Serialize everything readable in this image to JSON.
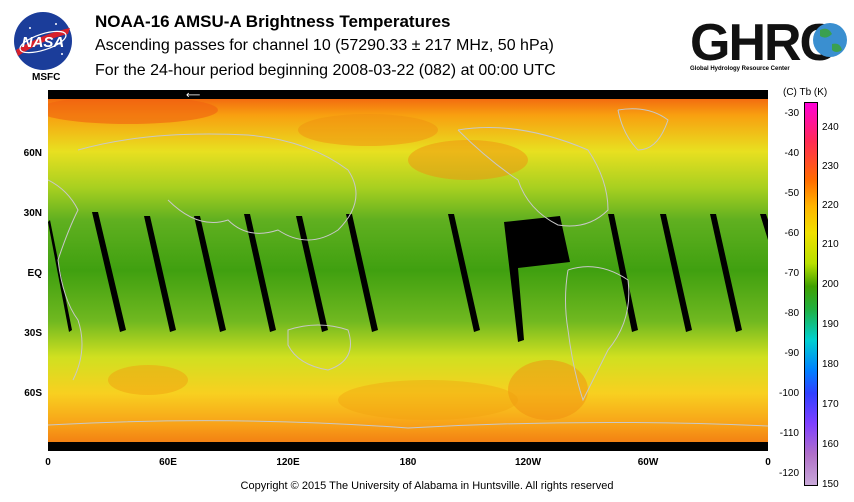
{
  "header": {
    "line1": "NOAA-16 AMSU-A Brightness Temperatures",
    "line2": "Ascending passes for channel 10 (57290.33 ± 217 MHz, 50 hPa)",
    "line3": "For the 24-hour period beginning 2008-03-22 (082) at 00:00 UTC"
  },
  "logos": {
    "nasa_text": "NASA",
    "msfc": "MSFC",
    "ghrc_text": "GHRC",
    "ghrc_sub": "Global Hydrology Resource Center"
  },
  "map": {
    "lat_labels": [
      "60N",
      "30N",
      "EQ",
      "30S",
      "60S"
    ],
    "lon_labels": [
      "0",
      "60E",
      "120E",
      "180",
      "120W",
      "60W",
      "0"
    ]
  },
  "colorbar": {
    "header": "(C)  Tb  (K)",
    "celsius": [
      "-30",
      "-40",
      "-50",
      "-60",
      "-70",
      "-80",
      "-90",
      "-100",
      "-110",
      "-120"
    ],
    "kelvin": [
      "240",
      "230",
      "220",
      "210",
      "200",
      "190",
      "180",
      "170",
      "160",
      "150"
    ]
  },
  "footer": {
    "copyright": "Copyright © 2015 The University of Alabama in Huntsville.  All rights reserved"
  }
}
